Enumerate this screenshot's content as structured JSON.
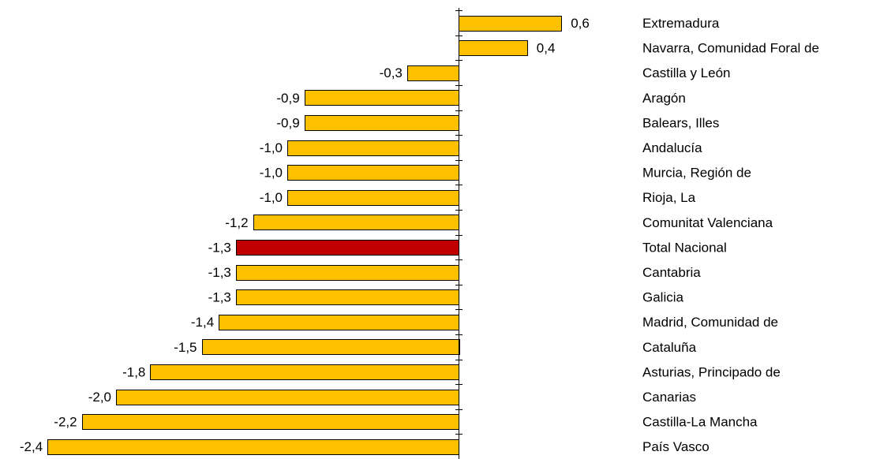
{
  "chart_data": {
    "type": "bar",
    "orientation": "horizontal",
    "title": "",
    "xlabel": "",
    "ylabel": "",
    "xlim": [
      -2.4,
      0.6
    ],
    "grid": false,
    "legend": "none",
    "colors": {
      "default": "#FFC000",
      "highlight": "#C00000"
    },
    "highlight_category": "Total Nacional",
    "categories": [
      "Extremadura",
      "Navarra, Comunidad Foral de",
      "Castilla y León",
      "Aragón",
      "Balears, Illes",
      "Andalucía",
      "Murcia, Región de",
      "Rioja, La",
      "Comunitat Valenciana",
      "Total Nacional",
      "Cantabria",
      "Galicia",
      "Madrid, Comunidad de",
      "Cataluña",
      "Asturias, Principado de",
      "Canarias",
      "Castilla-La Mancha",
      "País Vasco"
    ],
    "values": [
      0.6,
      0.4,
      -0.3,
      -0.9,
      -0.9,
      -1.0,
      -1.0,
      -1.0,
      -1.2,
      -1.3,
      -1.3,
      -1.3,
      -1.4,
      -1.5,
      -1.8,
      -2.0,
      -2.2,
      -2.4
    ],
    "value_labels": [
      "0,6",
      "0,4",
      "-0,3",
      "-0,9",
      "-0,9",
      "-1,0",
      "-1,0",
      "-1,0",
      "-1,2",
      "-1,3",
      "-1,3",
      "-1,3",
      "-1,4",
      "-1,5",
      "-1,8",
      "-2,0",
      "-2,2",
      "-2,4"
    ]
  }
}
